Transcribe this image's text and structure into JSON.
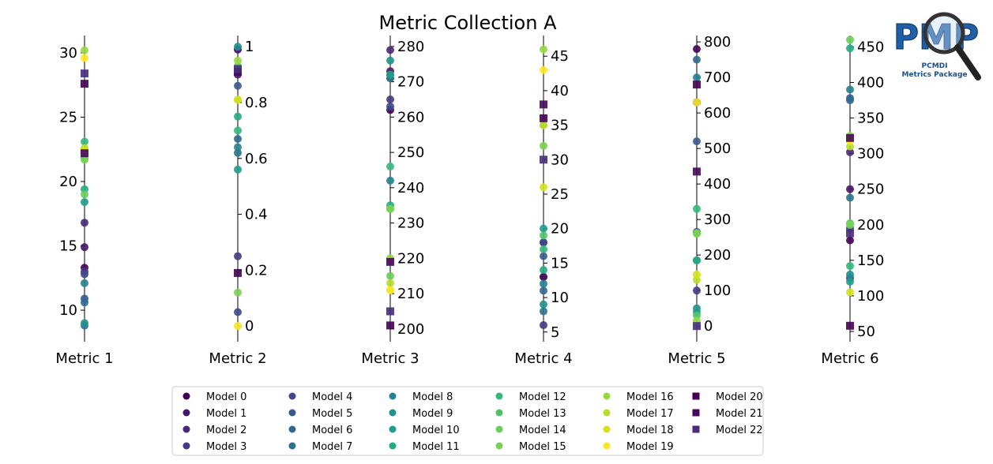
{
  "chart_data": {
    "type": "parallel-coordinates",
    "title": "Metric Collection A",
    "axes": [
      {
        "label": "Metric 1",
        "range": [
          7.55,
          31.35
        ],
        "ticks": [
          10,
          15,
          20,
          25,
          30
        ],
        "tick_side": "left"
      },
      {
        "label": "Metric 2",
        "range": [
          -0.056,
          1.04
        ],
        "ticks": [
          0.0,
          0.2,
          0.4,
          0.6,
          0.8,
          1.0
        ],
        "tick_side": "right"
      },
      {
        "label": "Metric 3",
        "range": [
          196.4,
          283.1
        ],
        "ticks": [
          200,
          210,
          220,
          230,
          240,
          250,
          260,
          270,
          280
        ],
        "tick_side": "right"
      },
      {
        "label": "Metric 4",
        "range": [
          3.6,
          48.0
        ],
        "ticks": [
          5,
          10,
          15,
          20,
          25,
          30,
          35,
          40,
          45
        ],
        "tick_side": "right"
      },
      {
        "label": "Metric 5",
        "range": [
          -44,
          818
        ],
        "ticks": [
          0,
          100,
          200,
          300,
          400,
          500,
          600,
          700,
          800
        ],
        "tick_side": "right"
      },
      {
        "label": "Metric 6",
        "range": [
          35.6,
          466
        ],
        "ticks": [
          50,
          100,
          150,
          200,
          250,
          300,
          350,
          400,
          450
        ],
        "tick_side": "right"
      }
    ],
    "series": [
      {
        "name": "Model 0",
        "color": "#440154",
        "marker": "circle",
        "values": [
          13.3,
          0.99,
          262,
          13,
          780,
          178
        ]
      },
      {
        "name": "Model 1",
        "color": "#481668",
        "marker": "circle",
        "values": [
          14.9,
          0.9,
          273,
          13,
          630,
          250
        ]
      },
      {
        "name": "Model 2",
        "color": "#482878",
        "marker": "circle",
        "values": [
          16.8,
          0.99,
          279,
          18,
          630,
          302
        ]
      },
      {
        "name": "Model 3",
        "color": "#443983",
        "marker": "circle",
        "values": [
          13.0,
          0.25,
          265,
          6,
          100,
          125
        ]
      },
      {
        "name": "Model 4",
        "color": "#3e4989",
        "marker": "circle",
        "values": [
          12.8,
          0.05,
          263,
          18,
          265,
          195
        ]
      },
      {
        "name": "Model 5",
        "color": "#375a8c",
        "marker": "circle",
        "values": [
          10.9,
          0.86,
          271,
          16,
          520,
          378
        ]
      },
      {
        "name": "Model 6",
        "color": "#31688e",
        "marker": "circle",
        "values": [
          10.6,
          0.67,
          272,
          11,
          750,
          375
        ]
      },
      {
        "name": "Model 7",
        "color": "#2c728e",
        "marker": "circle",
        "values": [
          8.8,
          0.62,
          271,
          8,
          185,
          238
        ]
      },
      {
        "name": "Model 8",
        "color": "#26828e",
        "marker": "circle",
        "values": [
          12.1,
          0.64,
          242,
          12,
          700,
          390
        ]
      },
      {
        "name": "Model 9",
        "color": "#21918c",
        "marker": "circle",
        "values": [
          9.0,
          1.0,
          276,
          9,
          50,
          130
        ]
      },
      {
        "name": "Model 10",
        "color": "#1f9e89",
        "marker": "circle",
        "values": [
          18.4,
          0.56,
          272,
          20,
          40,
          120
        ]
      },
      {
        "name": "Model 11",
        "color": "#25ab82",
        "marker": "circle",
        "values": [
          19.4,
          0.75,
          235,
          14,
          185,
          448
        ]
      },
      {
        "name": "Model 12",
        "color": "#35b779",
        "marker": "circle",
        "values": [
          23.1,
          0.7,
          246,
          17,
          330,
          142
        ]
      },
      {
        "name": "Model 13",
        "color": "#4ec36b",
        "marker": "circle",
        "values": [
          21.8,
          0.93,
          234,
          19,
          30,
          202
        ]
      },
      {
        "name": "Model 14",
        "color": "#6ccd5a",
        "marker": "circle",
        "values": [
          19.0,
          0.92,
          215,
          35,
          262,
          460
        ]
      },
      {
        "name": "Model 15",
        "color": "#7ad151",
        "marker": "circle",
        "values": [
          21.7,
          0.12,
          234,
          32,
          260,
          200
        ]
      },
      {
        "name": "Model 16",
        "color": "#95d840",
        "marker": "circle",
        "values": [
          30.2,
          0.95,
          220,
          46,
          15,
          325
        ]
      },
      {
        "name": "Model 17",
        "color": "#b8de29",
        "marker": "circle",
        "values": [
          22.6,
          0.81,
          213,
          35,
          130,
          310
        ]
      },
      {
        "name": "Model 18",
        "color": "#d2e21b",
        "marker": "circle",
        "values": [
          22.4,
          0.81,
          211,
          26,
          145,
          105
        ]
      },
      {
        "name": "Model 19",
        "color": "#fde725",
        "marker": "circle",
        "values": [
          29.6,
          0.0,
          211,
          43,
          630,
          318
        ]
      },
      {
        "name": "Model 20",
        "color": "#440154",
        "marker": "square",
        "values": [
          27.6,
          0.19,
          201,
          36,
          680,
          58
        ]
      },
      {
        "name": "Model 21",
        "color": "#46085c",
        "marker": "square",
        "values": [
          22.2,
          0.91,
          219,
          38,
          435,
          322
        ]
      },
      {
        "name": "Model 22",
        "color": "#472d7b",
        "marker": "square",
        "values": [
          28.4,
          0.92,
          205,
          30,
          0,
          188
        ]
      }
    ],
    "legend_placement": "bottom"
  },
  "logo": {
    "text": "PMP",
    "subtitle1": "PCMDI",
    "subtitle2": "Metrics Package"
  }
}
